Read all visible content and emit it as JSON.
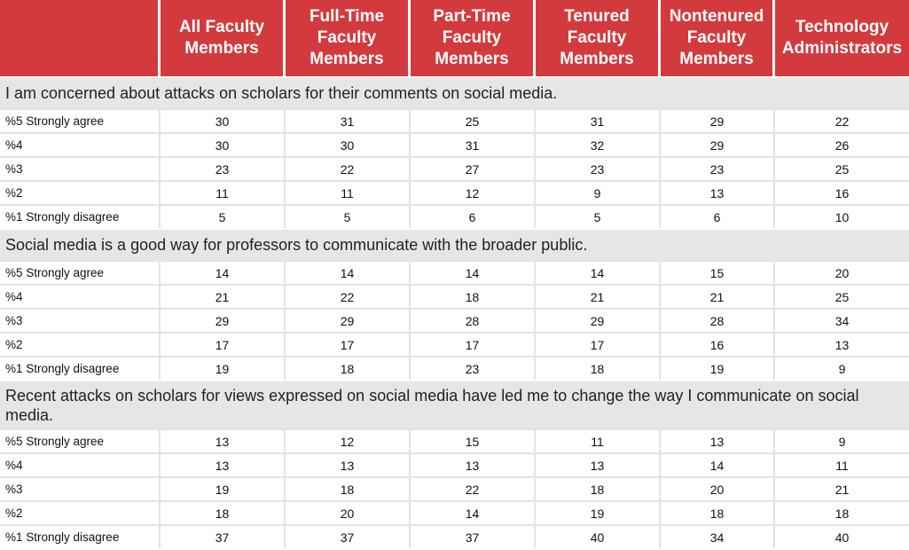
{
  "columns": [
    "",
    "All Faculty Members",
    "Full-Time Faculty Members",
    "Part-Time Faculty Members",
    "Tenured Faculty Members",
    "Nontenured Faculty Members",
    "Technology Administrators"
  ],
  "sections": [
    {
      "title": "I am concerned about attacks on scholars for their comments on social media.",
      "rows": [
        {
          "label": "%5 Strongly agree",
          "values": [
            "30",
            "31",
            "25",
            "31",
            "29",
            "22"
          ]
        },
        {
          "label": "%4",
          "values": [
            "30",
            "30",
            "31",
            "32",
            "29",
            "26"
          ]
        },
        {
          "label": "%3",
          "values": [
            "23",
            "22",
            "27",
            "23",
            "23",
            "25"
          ]
        },
        {
          "label": "%2",
          "values": [
            "11",
            "11",
            "12",
            "9",
            "13",
            "16"
          ]
        },
        {
          "label": "%1 Strongly disagree",
          "values": [
            "5",
            "5",
            "6",
            "5",
            "6",
            "10"
          ]
        }
      ]
    },
    {
      "title": "Social media is a good way for professors to communicate with the broader public.",
      "rows": [
        {
          "label": "%5 Strongly agree",
          "values": [
            "14",
            "14",
            "14",
            "14",
            "15",
            "20"
          ]
        },
        {
          "label": "%4",
          "values": [
            "21",
            "22",
            "18",
            "21",
            "21",
            "25"
          ]
        },
        {
          "label": "%3",
          "values": [
            "29",
            "29",
            "28",
            "29",
            "28",
            "34"
          ]
        },
        {
          "label": "%2",
          "values": [
            "17",
            "17",
            "17",
            "17",
            "16",
            "13"
          ]
        },
        {
          "label": "%1 Strongly disagree",
          "values": [
            "19",
            "18",
            "23",
            "18",
            "19",
            "9"
          ]
        }
      ]
    },
    {
      "title": "Recent attacks on scholars for views expressed on social media have led me to change the way I communicate on social media.",
      "rows": [
        {
          "label": "%5 Strongly agree",
          "values": [
            "13",
            "12",
            "15",
            "11",
            "13",
            "9"
          ]
        },
        {
          "label": "%4",
          "values": [
            "13",
            "13",
            "13",
            "13",
            "14",
            "11"
          ]
        },
        {
          "label": "%3",
          "values": [
            "19",
            "18",
            "22",
            "18",
            "20",
            "21"
          ]
        },
        {
          "label": "%2",
          "values": [
            "18",
            "20",
            "14",
            "19",
            "18",
            "18"
          ]
        },
        {
          "label": "%1 Strongly disagree",
          "values": [
            "37",
            "37",
            "37",
            "40",
            "34",
            "40"
          ]
        }
      ]
    }
  ],
  "colors": {
    "header_bg": "#d33a3d",
    "section_bg": "#e6e6e6"
  }
}
